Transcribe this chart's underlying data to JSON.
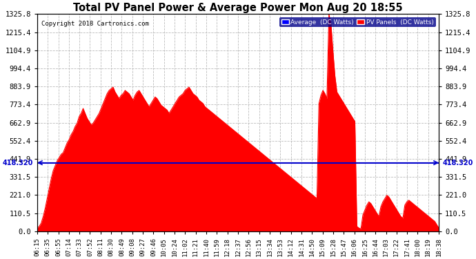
{
  "title": "Total PV Panel Power & Average Power Mon Aug 20 18:55",
  "copyright": "Copyright 2018 Cartronics.com",
  "legend_labels": [
    "Average  (DC Watts)",
    "PV Panels  (DC Watts)"
  ],
  "legend_colors": [
    "#0000ff",
    "#ff0000"
  ],
  "average_value": 418.32,
  "avg_label": "418.320",
  "y_max": 1325.8,
  "y_min": 0.0,
  "ytick_values": [
    0.0,
    110.5,
    221.0,
    331.5,
    441.9,
    552.4,
    662.9,
    773.4,
    883.9,
    994.4,
    1104.9,
    1215.4,
    1325.8
  ],
  "background_color": "#ffffff",
  "fill_color": "#ff0000",
  "avg_line_color": "#0000cc",
  "grid_color": "#bbbbbb",
  "x_tick_labels": [
    "06:15",
    "06:35",
    "06:55",
    "07:14",
    "07:33",
    "07:52",
    "08:11",
    "08:30",
    "08:49",
    "09:08",
    "09:27",
    "09:46",
    "10:05",
    "10:24",
    "11:02",
    "11:21",
    "11:40",
    "11:59",
    "12:18",
    "12:37",
    "12:56",
    "13:15",
    "13:34",
    "13:53",
    "14:12",
    "14:31",
    "14:50",
    "15:09",
    "15:28",
    "15:47",
    "16:06",
    "16:25",
    "16:44",
    "17:03",
    "17:22",
    "17:41",
    "18:00",
    "18:19",
    "18:38"
  ],
  "pv_data": [
    20,
    30,
    50,
    90,
    140,
    200,
    260,
    320,
    370,
    400,
    430,
    450,
    470,
    480,
    510,
    540,
    560,
    590,
    610,
    640,
    660,
    700,
    720,
    750,
    720,
    690,
    670,
    650,
    660,
    680,
    700,
    720,
    750,
    780,
    810,
    840,
    860,
    870,
    880,
    850,
    830,
    810,
    830,
    840,
    860,
    850,
    840,
    820,
    800,
    830,
    850,
    860,
    840,
    820,
    800,
    780,
    760,
    780,
    800,
    820,
    810,
    790,
    770,
    760,
    750,
    740,
    720,
    740,
    760,
    780,
    800,
    820,
    830,
    840,
    860,
    870,
    880,
    860,
    840,
    830,
    820,
    800,
    790,
    780,
    760,
    750,
    740,
    730,
    720,
    710,
    700,
    690,
    680,
    670,
    660,
    650,
    640,
    630,
    620,
    610,
    600,
    590,
    580,
    570,
    560,
    550,
    540,
    530,
    520,
    510,
    500,
    490,
    480,
    470,
    460,
    450,
    440,
    430,
    420,
    410,
    400,
    390,
    380,
    370,
    360,
    350,
    340,
    330,
    320,
    310,
    300,
    290,
    280,
    270,
    260,
    250,
    240,
    230,
    220,
    210,
    200,
    780,
    830,
    860,
    840,
    810,
    1325,
    1270,
    1100,
    950,
    850,
    830,
    810,
    790,
    770,
    750,
    730,
    710,
    690,
    670,
    30,
    20,
    15,
    100,
    130,
    160,
    180,
    170,
    150,
    130,
    110,
    90,
    150,
    180,
    200,
    220,
    210,
    190,
    170,
    150,
    130,
    110,
    90,
    80,
    160,
    180,
    190,
    180,
    170,
    160,
    150,
    140,
    130,
    120,
    110,
    100,
    90,
    80,
    70,
    60,
    40,
    20
  ]
}
